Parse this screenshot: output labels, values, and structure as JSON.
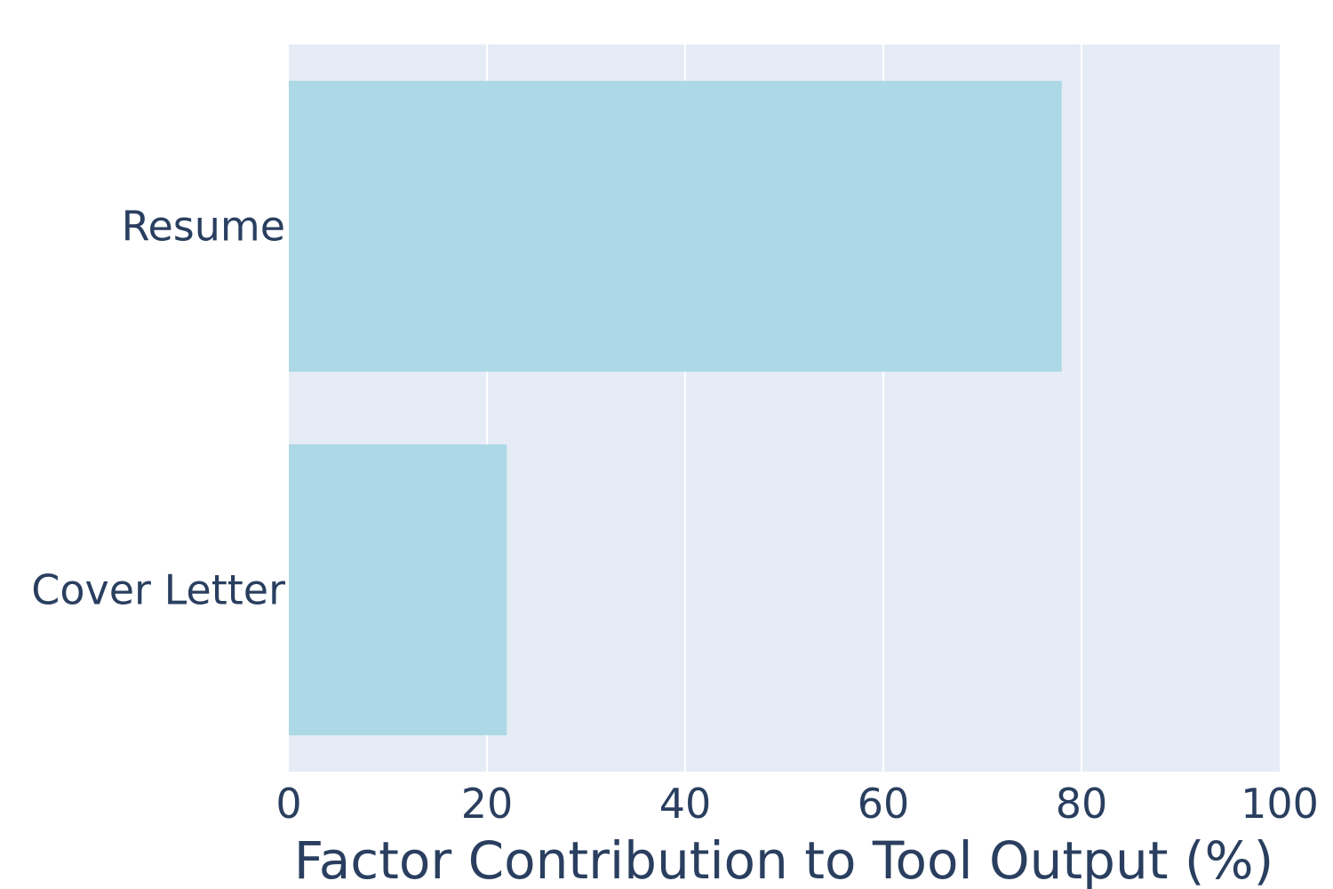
{
  "chart_data": {
    "type": "bar",
    "orientation": "horizontal",
    "categories": [
      "Resume",
      "Cover Letter"
    ],
    "values": [
      78,
      22
    ],
    "title": "",
    "xlabel": "Factor Contribution to Tool Output (%)",
    "ylabel": "",
    "xlim": [
      0,
      100
    ],
    "xticks": [
      0,
      20,
      40,
      60,
      80,
      100
    ],
    "grid": true,
    "legend": "none",
    "colors": {
      "bar": "#add8e6",
      "plot_background": "#e5ecf6",
      "gridline": "#ffffff",
      "text": "#2a3f5f"
    }
  }
}
